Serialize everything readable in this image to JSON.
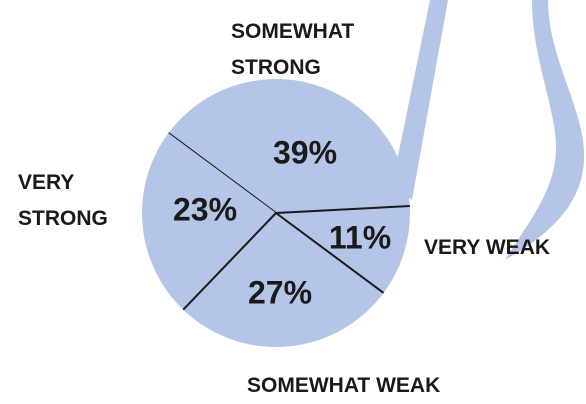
{
  "chart_data": {
    "type": "pie",
    "categories": [
      "SOMEWHAT STRONG",
      "VERY WEAK",
      "SOMEWHAT WEAK",
      "VERY STRONG"
    ],
    "values": [
      39,
      11,
      27,
      23
    ],
    "value_labels": [
      "39%",
      "11%",
      "27%",
      "23%"
    ],
    "color": "#b4c5e7"
  }
}
